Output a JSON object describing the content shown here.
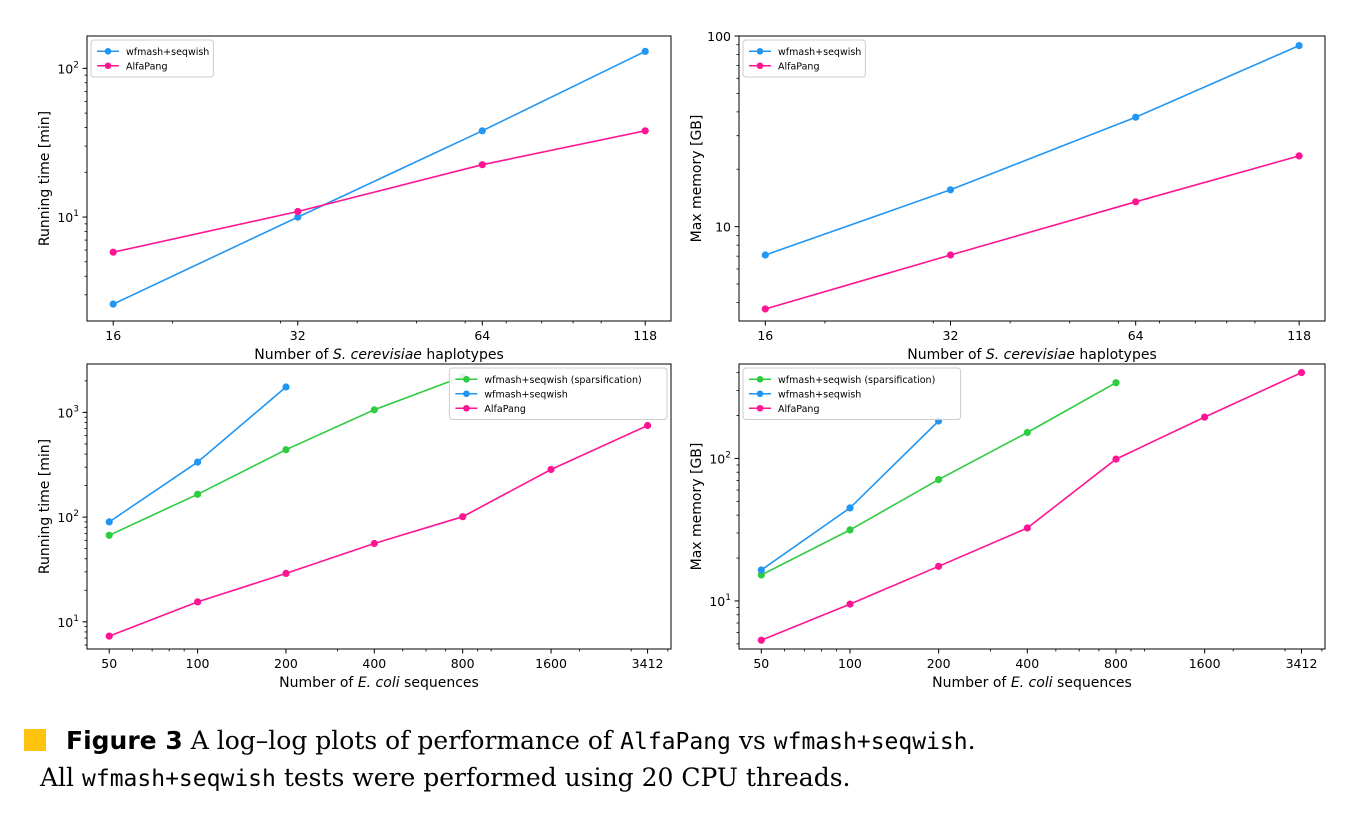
{
  "chart_data": [
    {
      "type": "line",
      "xlabel_prefix": "Number of ",
      "xlabel_italic": "S. cerevisiae",
      "xlabel_suffix": " haplotypes",
      "ylabel": "Running time [min]",
      "x_scale": "log",
      "y_scale": "log",
      "x": [
        16,
        32,
        64,
        118
      ],
      "x_tick_labels": [
        "16",
        "32",
        "64",
        "118"
      ],
      "xlim": [
        14.5,
        130
      ],
      "ylim": [
        2.0,
        165
      ],
      "y_major_ticks": [
        {
          "value": 10,
          "base": "10",
          "exp": "1"
        },
        {
          "value": 100,
          "base": "10",
          "exp": "2"
        }
      ],
      "legend_position": "top-left",
      "series": [
        {
          "name": "wfmash+seqwish",
          "color": "#2196f3",
          "values": [
            2.6,
            10,
            38,
            130
          ]
        },
        {
          "name": "AlfaPang",
          "color": "#ff1493",
          "values": [
            5.8,
            10.9,
            22.5,
            38
          ]
        }
      ]
    },
    {
      "type": "line",
      "xlabel_prefix": "Number of ",
      "xlabel_italic": "S. cerevisiae",
      "xlabel_suffix": " haplotypes",
      "ylabel": "Max memory [GB]",
      "x_scale": "log",
      "y_scale": "log",
      "x": [
        16,
        32,
        64,
        118
      ],
      "x_tick_labels": [
        "16",
        "32",
        "64",
        "118"
      ],
      "xlim": [
        14.5,
        130
      ],
      "ylim": [
        3.2,
        100
      ],
      "y_major_ticks": [
        {
          "value": 10,
          "base": "10",
          "exp": ""
        },
        {
          "value": 100,
          "base": "100",
          "exp": ""
        }
      ],
      "legend_position": "top-left",
      "series": [
        {
          "name": "wfmash+seqwish",
          "color": "#2196f3",
          "values": [
            7.1,
            15.6,
            37.5,
            89
          ]
        },
        {
          "name": "AlfaPang",
          "color": "#ff1493",
          "values": [
            3.7,
            7.1,
            13.5,
            23.5
          ]
        }
      ]
    },
    {
      "type": "line",
      "xlabel_prefix": "Number of ",
      "xlabel_italic": "E. coli",
      "xlabel_suffix": " sequences",
      "ylabel": "Running time [min]",
      "x_scale": "log",
      "y_scale": "log",
      "x": [
        50,
        100,
        200,
        400,
        800,
        1600,
        3412
      ],
      "x_tick_labels": [
        "50",
        "100",
        "200",
        "400",
        "800",
        "1600",
        "3412"
      ],
      "xlim": [
        42,
        4100
      ],
      "ylim": [
        5.5,
        2900
      ],
      "y_major_ticks": [
        {
          "value": 10,
          "base": "10",
          "exp": "1"
        },
        {
          "value": 100,
          "base": "10",
          "exp": "2"
        },
        {
          "value": 1000,
          "base": "10",
          "exp": "3"
        }
      ],
      "legend_position": "top-right",
      "series": [
        {
          "name": "wfmash+seqwish (sparsification)",
          "color": "#2ecc40",
          "values": [
            67,
            165,
            440,
            1060,
            2200,
            null,
            null
          ]
        },
        {
          "name": "wfmash+seqwish",
          "color": "#2196f3",
          "values": [
            90,
            335,
            1750,
            null,
            null,
            null,
            null
          ]
        },
        {
          "name": "AlfaPang",
          "color": "#ff1493",
          "values": [
            7.3,
            15.5,
            29,
            56,
            101,
            285,
            750
          ]
        }
      ]
    },
    {
      "type": "line",
      "xlabel_prefix": "Number of ",
      "xlabel_italic": "E. coli",
      "xlabel_suffix": " sequences",
      "ylabel": "Max memory [GB]",
      "x_scale": "log",
      "y_scale": "log",
      "x": [
        50,
        100,
        200,
        400,
        800,
        1600,
        3412
      ],
      "x_tick_labels": [
        "50",
        "100",
        "200",
        "400",
        "800",
        "1600",
        "3412"
      ],
      "xlim": [
        42,
        4100
      ],
      "ylim": [
        4.6,
        460
      ],
      "y_major_ticks": [
        {
          "value": 10,
          "base": "10",
          "exp": "1"
        },
        {
          "value": 100,
          "base": "10",
          "exp": "2"
        }
      ],
      "legend_position": "top-left",
      "series": [
        {
          "name": "wfmash+seqwish (sparsification)",
          "color": "#2ecc40",
          "values": [
            15.2,
            31.5,
            71,
            152,
            340,
            null,
            null
          ]
        },
        {
          "name": "wfmash+seqwish",
          "color": "#2196f3",
          "values": [
            16.5,
            45,
            183,
            null,
            null,
            null,
            null
          ]
        },
        {
          "name": "AlfaPang",
          "color": "#ff1493",
          "values": [
            5.3,
            9.5,
            17.5,
            32.5,
            99,
            195,
            400
          ]
        }
      ]
    }
  ],
  "caption": {
    "figure_label": "Figure 3",
    "line1_text1": "A log–log plots of performance of ",
    "line1_mono1": "AlfaPang",
    "line1_text2": " vs ",
    "line1_mono2": "wfmash+seqwish",
    "line1_text3": ".",
    "line2_text1": "All ",
    "line2_mono1": "wfmash+seqwish",
    "line2_text2": " tests were performed using 20 CPU threads."
  }
}
